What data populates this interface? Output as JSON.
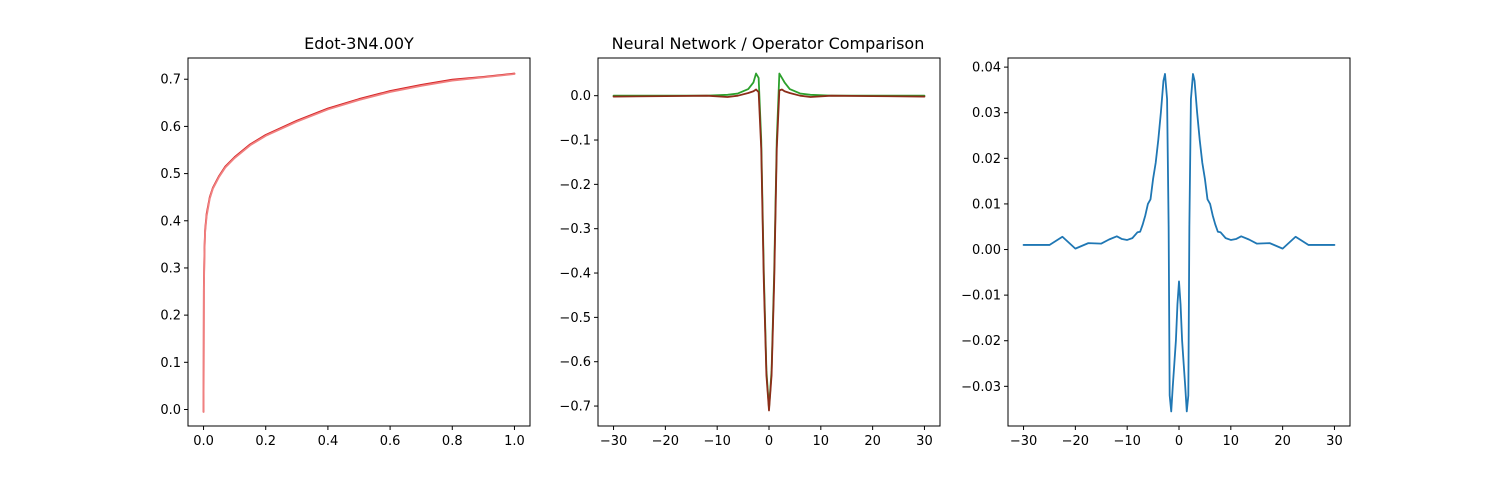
{
  "chart_data": [
    {
      "type": "line",
      "title": "Edot-3N4.00Y",
      "xlabel": "",
      "ylabel": "",
      "xlim": [
        -0.05,
        1.05
      ],
      "ylim": [
        -0.035,
        0.745
      ],
      "xticks": [
        0.0,
        0.2,
        0.4,
        0.6,
        0.8,
        1.0
      ],
      "xtick_labels": [
        "0.0",
        "0.2",
        "0.4",
        "0.6",
        "0.8",
        "1.0"
      ],
      "yticks": [
        0.0,
        0.1,
        0.2,
        0.3,
        0.4,
        0.5,
        0.6,
        0.7
      ],
      "ytick_labels": [
        "0.0",
        "0.1",
        "0.2",
        "0.3",
        "0.4",
        "0.5",
        "0.6",
        "0.7"
      ],
      "grid": false,
      "series": [
        {
          "color": "#d62728",
          "x": [
            0.0,
            0.001,
            0.003,
            0.005,
            0.01,
            0.02,
            0.03,
            0.05,
            0.07,
            0.1,
            0.15,
            0.2,
            0.3,
            0.4,
            0.5,
            0.6,
            0.7,
            0.8,
            0.9,
            1.0
          ],
          "y": [
            -0.005,
            0.26,
            0.34,
            0.38,
            0.415,
            0.45,
            0.47,
            0.495,
            0.515,
            0.535,
            0.562,
            0.582,
            0.612,
            0.638,
            0.658,
            0.675,
            0.688,
            0.699,
            0.705,
            0.712
          ]
        },
        {
          "color": "#f08080",
          "x": [
            0.0,
            0.001,
            0.003,
            0.005,
            0.01,
            0.02,
            0.03,
            0.05,
            0.07,
            0.1,
            0.15,
            0.2,
            0.3,
            0.4,
            0.5,
            0.6,
            0.7,
            0.8,
            0.9,
            1.0
          ],
          "y": [
            -0.005,
            0.25,
            0.335,
            0.375,
            0.41,
            0.447,
            0.468,
            0.493,
            0.513,
            0.533,
            0.56,
            0.58,
            0.61,
            0.636,
            0.656,
            0.673,
            0.686,
            0.697,
            0.704,
            0.711
          ]
        }
      ]
    },
    {
      "type": "line",
      "title": "Neural Network / Operator Comparison",
      "xlabel": "",
      "ylabel": "",
      "xlim": [
        -33,
        33
      ],
      "ylim": [
        -0.745,
        0.085
      ],
      "xticks": [
        -30,
        -20,
        -10,
        0,
        10,
        20,
        30
      ],
      "xtick_labels": [
        "−30",
        "−20",
        "−10",
        "0",
        "10",
        "20",
        "30"
      ],
      "yticks": [
        0.0,
        -0.1,
        -0.2,
        -0.3,
        -0.4,
        -0.5,
        -0.6,
        -0.7
      ],
      "ytick_labels": [
        "0.0",
        "−0.1",
        "−0.2",
        "−0.3",
        "−0.4",
        "−0.5",
        "−0.6",
        "−0.7"
      ],
      "grid": false,
      "series": [
        {
          "color": "#2ca02c",
          "x": [
            -30,
            -20,
            -12,
            -8,
            -6,
            -4,
            -3,
            -2.5,
            -2,
            -1.5,
            -1,
            -0.5,
            0,
            0.5,
            1,
            1.5,
            2,
            2.5,
            3,
            4,
            6,
            8,
            12,
            20,
            30
          ],
          "y": [
            0.0,
            0.0,
            0.0,
            0.002,
            0.005,
            0.015,
            0.03,
            0.05,
            0.04,
            -0.1,
            -0.4,
            -0.62,
            -0.705,
            -0.62,
            -0.4,
            -0.1,
            0.05,
            0.04,
            0.03,
            0.015,
            0.005,
            0.002,
            0.0,
            0.0,
            0.0
          ]
        },
        {
          "color": "#8c2d19",
          "x": [
            -30,
            -20,
            -12,
            -8,
            -6,
            -4,
            -3,
            -2.5,
            -2,
            -1.5,
            -1,
            -0.5,
            0,
            0.5,
            1,
            1.5,
            2,
            2.5,
            3,
            4,
            6,
            8,
            12,
            20,
            30
          ],
          "y": [
            -0.002,
            -0.001,
            0.0,
            -0.003,
            0.0,
            0.006,
            0.01,
            0.014,
            0.008,
            -0.12,
            -0.42,
            -0.63,
            -0.71,
            -0.63,
            -0.42,
            -0.12,
            0.012,
            0.014,
            0.01,
            0.006,
            0.0,
            -0.003,
            0.0,
            -0.001,
            -0.002
          ]
        }
      ]
    },
    {
      "type": "line",
      "title": "",
      "xlabel": "",
      "ylabel": "",
      "xlim": [
        -33,
        33
      ],
      "ylim": [
        -0.0387,
        0.042
      ],
      "xticks": [
        -30,
        -20,
        -10,
        0,
        10,
        20,
        30
      ],
      "xtick_labels": [
        "−30",
        "−20",
        "−10",
        "0",
        "10",
        "20",
        "30"
      ],
      "yticks": [
        0.04,
        0.03,
        0.02,
        0.01,
        0.0,
        -0.01,
        -0.02,
        -0.03
      ],
      "ytick_labels": [
        "0.04",
        "0.03",
        "0.02",
        "0.01",
        "0.00",
        "−0.01",
        "−0.02",
        "−0.03"
      ],
      "grid": false,
      "series": [
        {
          "color": "#1f77b4",
          "x": [
            -30,
            -27,
            -25,
            -22.5,
            -20,
            -17.5,
            -15,
            -13.5,
            -12,
            -11,
            -10,
            -9,
            -8,
            -7.5,
            -7,
            -6.5,
            -6,
            -5.5,
            -5,
            -4.5,
            -4,
            -3.5,
            -3,
            -2.7,
            -2.3,
            -2,
            -1.8,
            -1.5,
            -1.2,
            -0.9,
            -0.6,
            -0.3,
            0,
            0.3,
            0.6,
            0.9,
            1.2,
            1.5,
            1.8,
            2,
            2.3,
            2.7,
            3,
            3.5,
            4,
            4.5,
            5,
            5.5,
            6,
            6.5,
            7,
            7.5,
            8,
            9,
            10,
            11,
            12,
            13.5,
            15,
            17.5,
            20,
            22.5,
            25,
            27,
            30
          ],
          "y": [
            0.001,
            0.001,
            0.001,
            0.0028,
            0.0002,
            0.0014,
            0.0013,
            0.0022,
            0.0029,
            0.0023,
            0.0021,
            0.0025,
            0.0038,
            0.0039,
            0.0055,
            0.0075,
            0.01,
            0.011,
            0.0155,
            0.019,
            0.024,
            0.03,
            0.037,
            0.0385,
            0.033,
            0.005,
            -0.032,
            -0.0355,
            -0.03,
            -0.025,
            -0.02,
            -0.012,
            -0.007,
            -0.012,
            -0.02,
            -0.025,
            -0.03,
            -0.0355,
            -0.032,
            0.005,
            0.033,
            0.0385,
            0.037,
            0.03,
            0.024,
            0.019,
            0.0155,
            0.011,
            0.01,
            0.0075,
            0.0055,
            0.0039,
            0.0038,
            0.0025,
            0.0021,
            0.0023,
            0.0029,
            0.0022,
            0.0013,
            0.0014,
            0.0002,
            0.0028,
            0.001,
            0.001,
            0.001
          ]
        }
      ]
    }
  ]
}
